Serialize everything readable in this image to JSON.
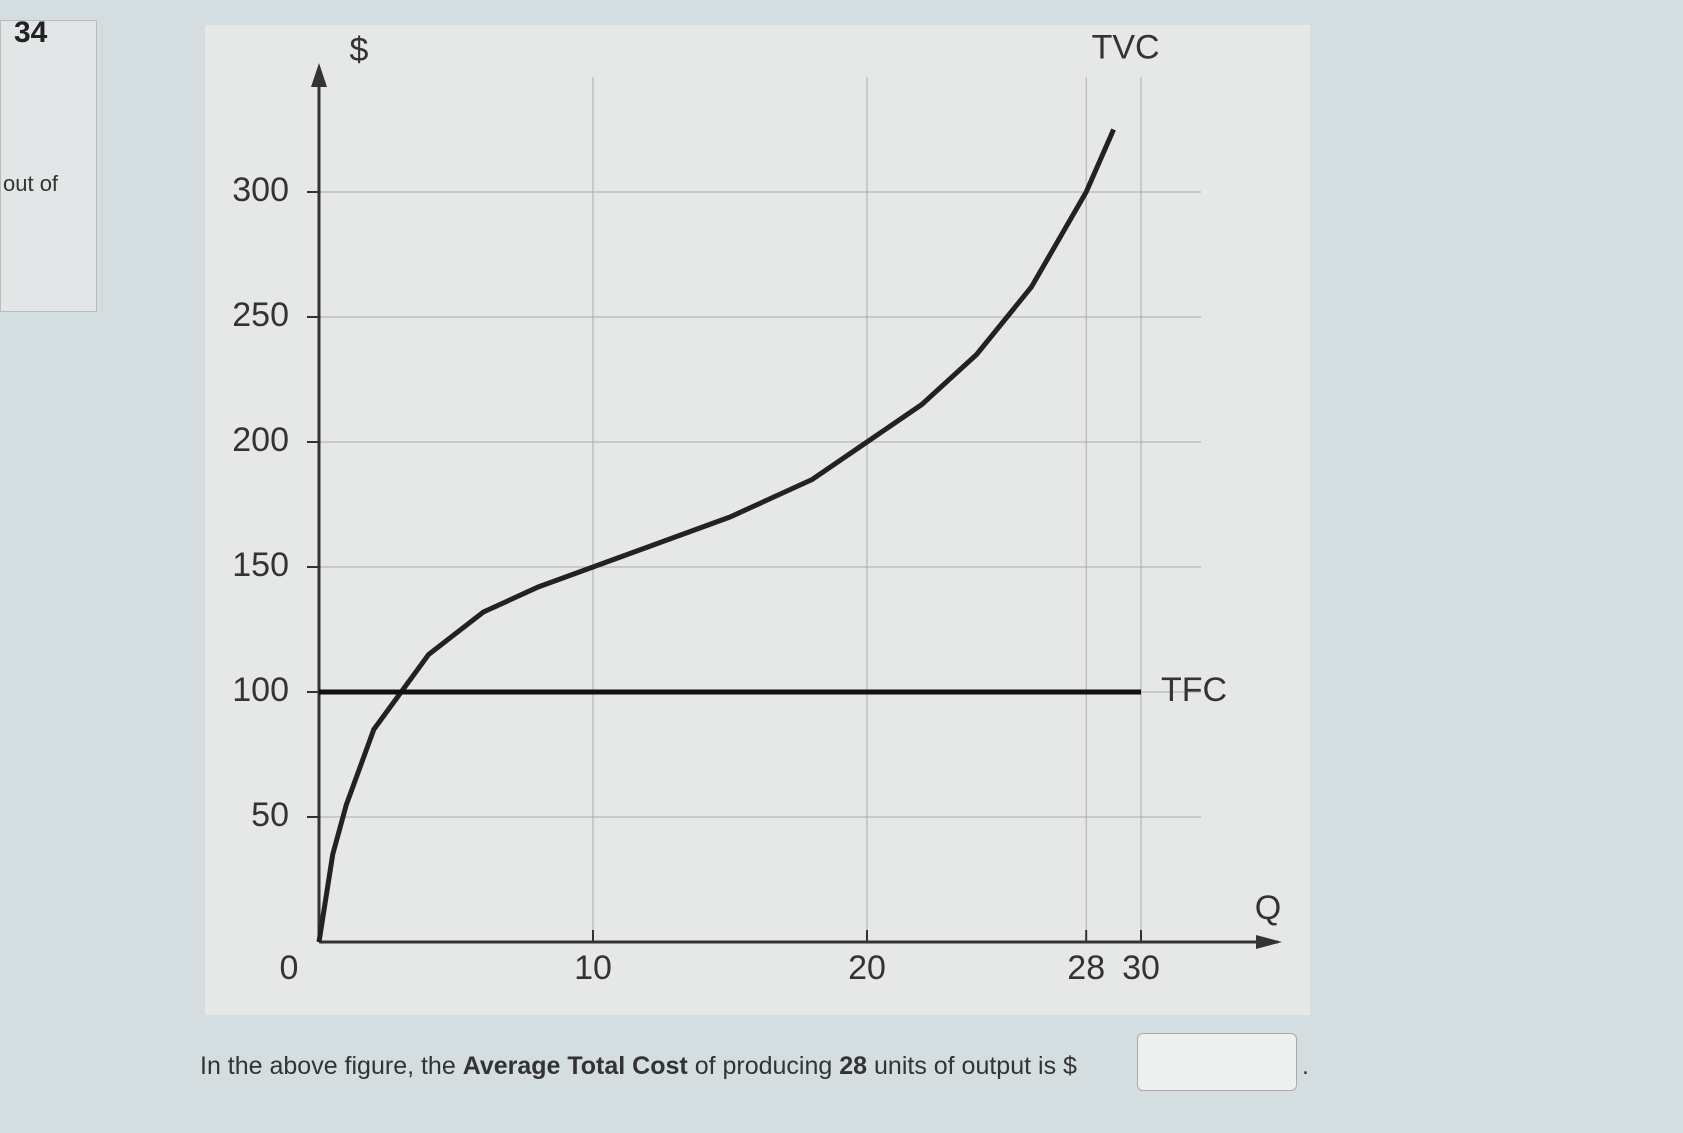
{
  "question_number": "34",
  "sidebar": [
    "out of"
  ],
  "question": {
    "parts": [
      "In the above figure, the ",
      "Average Total Cost",
      " of producing ",
      "28",
      " units of output is $"
    ],
    "end": "."
  },
  "chart_data": {
    "type": "line",
    "ylabel": "$",
    "xlabel": "Q",
    "xlim": [
      0,
      35
    ],
    "ylim": [
      0,
      350
    ],
    "xticks": [
      0,
      10,
      20,
      28,
      30
    ],
    "yticks": [
      50,
      100,
      150,
      200,
      250,
      300
    ],
    "grid": true,
    "series": [
      {
        "name": "TVC",
        "color": "#222222",
        "x": [
          0,
          0.5,
          1,
          2,
          3,
          4,
          6,
          8,
          10,
          12,
          15,
          18,
          20,
          22,
          24,
          26,
          28,
          29
        ],
        "values": [
          0,
          35,
          55,
          85,
          100,
          115,
          132,
          142,
          150,
          158,
          170,
          185,
          200,
          215,
          235,
          262,
          300,
          325
        ]
      },
      {
        "name": "TFC",
        "color": "#111111",
        "x": [
          0,
          30
        ],
        "values": [
          100,
          100
        ]
      }
    ]
  }
}
